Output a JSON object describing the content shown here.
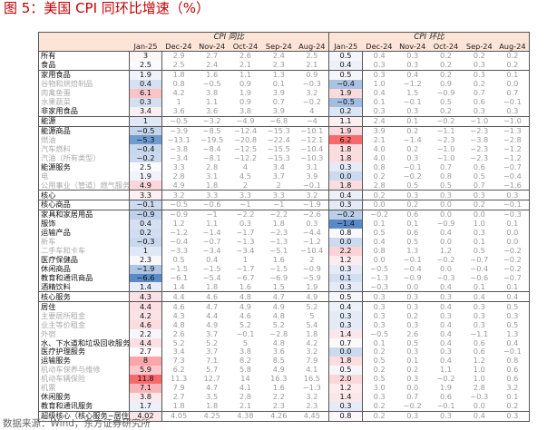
{
  "title": "图 5：美国 CPI 同环比增速（%）",
  "source": "数据来源：Wind，东方证券研究所",
  "header": {
    "yoy_label": "CPI 同比",
    "mom_label": "CPI 环比",
    "months": [
      "Jan-25",
      "Dec-24",
      "Nov-24",
      "Oct-24",
      "Sep-24",
      "Aug-24"
    ]
  },
  "colors": {
    "header_bg": "#fce4d6",
    "high": "#f8696b",
    "mid": "#fcfcff",
    "low": "#5a8ac6"
  },
  "rows": [
    {
      "label": "所有",
      "gray": false,
      "sep": false,
      "yoy": [
        "3",
        "2.9",
        "2.7",
        "2.6",
        "2.4",
        "2.5"
      ],
      "mom": [
        "0.5",
        "0.4",
        "0.3",
        "0.2",
        "0.2",
        "0.2"
      ]
    },
    {
      "label": "食品",
      "gray": false,
      "sep": true,
      "yoy": [
        "2.5",
        "2.5",
        "2.4",
        "2.1",
        "2.3",
        "2.1"
      ],
      "mom": [
        "0.4",
        "0.3",
        "0.3",
        "0.2",
        "0.3",
        "0.2"
      ]
    },
    {
      "label": "家用食品",
      "gray": false,
      "sep": false,
      "yoy": [
        "1.9",
        "1.8",
        "1.6",
        "1.1",
        "1.3",
        "0.9"
      ],
      "mom": [
        "0.5",
        "0.3",
        "0.4",
        "0.2",
        "0.3",
        "0.1"
      ]
    },
    {
      "label": "谷物和烘焙制品",
      "gray": true,
      "sep": false,
      "yoy": [
        "0.4",
        "0.8",
        "−0.5",
        "0.9",
        "0.1",
        "−0.3"
      ],
      "mom": [
        "−0.4",
        "1.0",
        "−1.2",
        "0.9",
        "0.2",
        "0.0"
      ]
    },
    {
      "label": "肉禽鱼蛋",
      "gray": true,
      "sep": false,
      "yoy": [
        "6.1",
        "4.2",
        "3.8",
        "1.9",
        "3.9",
        "3.2"
      ],
      "mom": [
        "1.9",
        "0.4",
        "1.5",
        "−0.9",
        "0.7",
        "0.7"
      ]
    },
    {
      "label": "水果蔬菜",
      "gray": true,
      "sep": false,
      "yoy": [
        "0.3",
        "1",
        "1.1",
        "0.9",
        "0.7",
        "−0.2"
      ],
      "mom": [
        "−0.5",
        "0.1",
        "−0.1",
        "0.5",
        "0.6",
        "−0.1"
      ]
    },
    {
      "label": "非家用食品",
      "gray": false,
      "sep": true,
      "yoy": [
        "3.4",
        "3.6",
        "3.6",
        "3.8",
        "3.9",
        "4"
      ],
      "mom": [
        "0.2",
        "0.3",
        "0.3",
        "0.2",
        "0.3",
        "0.3"
      ]
    },
    {
      "label": "能源",
      "gray": false,
      "sep": true,
      "yoy": [
        "1",
        "−0.5",
        "−3.2",
        "−4.9",
        "−6.8",
        "−4"
      ],
      "mom": [
        "1.1",
        "2.4",
        "0.1",
        "−0.2",
        "−1.0",
        "−1.0"
      ]
    },
    {
      "label": "能源商品",
      "gray": false,
      "sep": false,
      "yoy": [
        "−0.5",
        "−3.9",
        "−8.5",
        "−12.4",
        "−15.3",
        "−10.1"
      ],
      "mom": [
        "1.9",
        "3.9",
        "0.2",
        "−1.1",
        "−2.3",
        "−1.3"
      ]
    },
    {
      "label": "燃油",
      "gray": true,
      "sep": false,
      "yoy": [
        "−5.3",
        "−13.1",
        "−19.5",
        "−20.8",
        "−22.4",
        "−12.1"
      ],
      "mom": [
        "6.2",
        "2.1",
        "−1.4",
        "−2.3",
        "−3.8",
        "−2.8"
      ]
    },
    {
      "label": "汽车燃料",
      "gray": true,
      "sep": false,
      "yoy": [
        "−0.4",
        "−3.8",
        "−8.4",
        "−12.5",
        "−15.5",
        "−10.4"
      ],
      "mom": [
        "1.8",
        "4.0",
        "0.2",
        "−1.0",
        "−2.3",
        "−1.2"
      ]
    },
    {
      "label": "汽油（所有类型）",
      "gray": true,
      "sep": false,
      "yoy": [
        "−0.2",
        "−3.4",
        "−8.1",
        "−12.2",
        "−15.3",
        "−10.3"
      ],
      "mom": [
        "1.8",
        "4.0",
        "0.3",
        "−1.0",
        "−2.3",
        "−1.2"
      ]
    },
    {
      "label": "能源服务",
      "gray": false,
      "sep": false,
      "yoy": [
        "2.5",
        "3.3",
        "2.8",
        "4",
        "3.4",
        "3.1"
      ],
      "mom": [
        "0.3",
        "0.8",
        "−0.1",
        "0.7",
        "0.6",
        "−0.7"
      ]
    },
    {
      "label": "电",
      "gray": true,
      "sep": false,
      "yoy": [
        "1.9",
        "2.8",
        "3.1",
        "4.5",
        "3.7",
        "3.9"
      ],
      "mom": [
        "0.0",
        "0.2",
        "−0.2",
        "0.8",
        "0.5",
        "−0.4"
      ]
    },
    {
      "label": "公用事业（管道）燃气服务",
      "gray": true,
      "sep": true,
      "yoy": [
        "4.9",
        "4.9",
        "1.8",
        "2",
        "2",
        "−0.1"
      ],
      "mom": [
        "1.8",
        "2.8",
        "0.5",
        "0.5",
        "0.7",
        "−1.6"
      ]
    },
    {
      "label": "核心",
      "gray": false,
      "sep": true,
      "yoy": [
        "3.3",
        "3.2",
        "3.3",
        "3.3",
        "3.3",
        "3.2"
      ],
      "mom": [
        "0.4",
        "0.2",
        "0.3",
        "0.3",
        "0.3",
        "0.3"
      ]
    },
    {
      "label": "核心商品",
      "gray": false,
      "sep": true,
      "yoy": [
        "−0.1",
        "−0.5",
        "−0.6",
        "−1",
        "−1",
        "−1.9"
      ],
      "mom": [
        "0.3",
        "0.0",
        "0.2",
        "0.0",
        "0.2",
        "−0.1"
      ]
    },
    {
      "label": "家具和家居用品",
      "gray": false,
      "sep": false,
      "yoy": [
        "−0.9",
        "−0.9",
        "−1",
        "−2.2",
        "−2.2",
        "−2.6"
      ],
      "mom": [
        "−0.2",
        "−0.2",
        "0.6",
        "0.0",
        "0.0",
        "−0.3"
      ]
    },
    {
      "label": "服饰",
      "gray": false,
      "sep": false,
      "yoy": [
        "0.4",
        "1.2",
        "1.1",
        "0.3",
        "1.8",
        "0.3"
      ],
      "mom": [
        "−1.4",
        "0.1",
        "0.1",
        "−0.9",
        "1.0",
        "0.1"
      ]
    },
    {
      "label": "运输产品",
      "gray": false,
      "sep": false,
      "yoy": [
        "0.2",
        "−1.2",
        "−1.4",
        "−1.7",
        "−2.3",
        "−4.4"
      ],
      "mom": [
        "0.8",
        "0.5",
        "0.6",
        "0.4",
        "0.3",
        "0.0"
      ]
    },
    {
      "label": "新车",
      "gray": true,
      "sep": false,
      "yoy": [
        "−0.3",
        "−0.4",
        "−0.7",
        "−1.3",
        "−1.3",
        "−1.2"
      ],
      "mom": [
        "0.0",
        "0.4",
        "0.5",
        "0.0",
        "0.1",
        "0.0"
      ]
    },
    {
      "label": "二手车和卡车",
      "gray": true,
      "sep": false,
      "yoy": [
        "1",
        "−3.3",
        "−3.4",
        "−3.4",
        "−5.1",
        "−10.4"
      ],
      "mom": [
        "2.2",
        "0.8",
        "1.3",
        "1.2",
        "0.5",
        "−0.2"
      ]
    },
    {
      "label": "医疗保健品",
      "gray": false,
      "sep": false,
      "yoy": [
        "2.3",
        "0.5",
        "0.4",
        "1",
        "1.6",
        "2"
      ],
      "mom": [
        "1.2",
        "0.0",
        "−0.1",
        "−0.2",
        "−0.7",
        "−0.2"
      ]
    },
    {
      "label": "休闲商品",
      "gray": false,
      "sep": false,
      "yoy": [
        "−1.9",
        "−1.5",
        "−1.5",
        "−1.7",
        "−1.5",
        "−0.9"
      ],
      "mom": [
        "0.3",
        "−0.5",
        "−0.4",
        "0.0",
        "−0.4",
        "−0.2"
      ]
    },
    {
      "label": "教育和通讯商品",
      "gray": false,
      "sep": false,
      "yoy": [
        "−6.6",
        "−6.1",
        "−5.4",
        "−6.7",
        "−6.9",
        "−5.9"
      ],
      "mom": [
        "0.1",
        "−1.3",
        "−0.9",
        "−0.3",
        "−0.6",
        "−0.7"
      ]
    },
    {
      "label": "酒精饮料",
      "gray": false,
      "sep": true,
      "yoy": [
        "1.4",
        "1.4",
        "1.8",
        "1.6",
        "1.5",
        "1.9"
      ],
      "mom": [
        "0.3",
        "−0.3",
        "0.0",
        "0.4",
        "0.1",
        "0.1"
      ]
    },
    {
      "label": "核心服务",
      "gray": false,
      "sep": true,
      "yoy": [
        "4.3",
        "4.4",
        "4.6",
        "4.8",
        "4.7",
        "4.9"
      ],
      "mom": [
        "0.5",
        "0.3",
        "0.3",
        "0.3",
        "0.4",
        "0.4"
      ]
    },
    {
      "label": "居住",
      "gray": false,
      "sep": false,
      "yoy": [
        "4.4",
        "4.6",
        "4.7",
        "4.9",
        "4.9",
        "5.2"
      ],
      "mom": [
        "0.4",
        "0.3",
        "0.3",
        "0.4",
        "0.3",
        "0.5"
      ]
    },
    {
      "label": "主要居所租金",
      "gray": true,
      "sep": false,
      "yoy": [
        "4.2",
        "4.3",
        "4.4",
        "4.6",
        "4.8",
        "5"
      ],
      "mom": [
        "0.3",
        "0.3",
        "0.2",
        "0.3",
        "0.3",
        "0.3"
      ]
    },
    {
      "label": "业主等价租金",
      "gray": true,
      "sep": false,
      "yoy": [
        "4.6",
        "4.8",
        "4.9",
        "5.2",
        "5.2",
        "5.4"
      ],
      "mom": [
        "0.3",
        "0.3",
        "0.3",
        "0.4",
        "0.3",
        "0.5"
      ]
    },
    {
      "label": "外宿",
      "gray": true,
      "sep": false,
      "yoy": [
        "2.2",
        "2.6",
        "3.7",
        "−0.1",
        "−2.8",
        "1.8"
      ],
      "mom": [
        "1.4",
        "−0.5",
        "2.6",
        "0.4",
        "−1.1",
        "1.3"
      ]
    },
    {
      "label": "水、下水道和垃圾回收服务",
      "gray": false,
      "sep": false,
      "yoy": [
        "4.4",
        "5.2",
        "5.2",
        "5",
        "4.8",
        "4.2"
      ],
      "mom": [
        "0.7",
        "0.1",
        "0.5",
        "0.4",
        "0.6",
        "0.4"
      ]
    },
    {
      "label": "医疗护理服务",
      "gray": false,
      "sep": false,
      "yoy": [
        "2.7",
        "3.4",
        "3.7",
        "3.8",
        "3.6",
        "3.2"
      ],
      "mom": [
        "0.0",
        "0.2",
        "0.3",
        "0.3",
        "0.6",
        "−0.1"
      ]
    },
    {
      "label": "运输服务",
      "gray": false,
      "sep": false,
      "yoy": [
        "8",
        "7.3",
        "7.1",
        "8.2",
        "8.5",
        "7.9"
      ],
      "mom": [
        "1.8",
        "0.5",
        "0.1",
        "0.4",
        "1.2",
        "0.8"
      ]
    },
    {
      "label": "机动车保养与维修",
      "gray": true,
      "sep": false,
      "yoy": [
        "5.9",
        "6.2",
        "5.7",
        "5.8",
        "4.9",
        "4.1"
      ],
      "mom": [
        "0.5",
        "0.2",
        "0.2",
        "1.1",
        "1.0",
        "0.6"
      ]
    },
    {
      "label": "机动车辆保险",
      "gray": true,
      "sep": false,
      "yoy": [
        "11.8",
        "11.3",
        "12.7",
        "14",
        "16.3",
        "16.5"
      ],
      "mom": [
        "2.0",
        "0.5",
        "0.3",
        "−0.2",
        "1.0",
        "0.6"
      ]
    },
    {
      "label": "机票",
      "gray": true,
      "sep": false,
      "yoy": [
        "7.1",
        "7.9",
        "4.7",
        "4.1",
        "1.6",
        "−1.3"
      ],
      "mom": [
        "1.2",
        "3.0",
        "0.0",
        "1.9",
        "2.8",
        "3.2"
      ]
    },
    {
      "label": "休闲服务",
      "gray": false,
      "sep": false,
      "yoy": [
        "3.8",
        "2.7",
        "3.5",
        "2.8",
        "2.2",
        "3.2"
      ],
      "mom": [
        "1.4",
        "0.3",
        "0.7",
        "0.6",
        "−0.3",
        "0.1"
      ]
    },
    {
      "label": "教育和通讯服务",
      "gray": false,
      "sep": true,
      "yoy": [
        "1.7",
        "1.8",
        "1.8",
        "2.1",
        "2.3",
        "2.3"
      ],
      "mom": [
        "0.3",
        "0.2",
        "−0.2",
        "−0.1",
        "0.0",
        "0.2"
      ]
    },
    {
      "label": "超级核心（核心服务−居住）",
      "gray": false,
      "sep": false,
      "yoy": [
        "4.02",
        "4.05",
        "4.25",
        "4.38",
        "4.26",
        "4.45"
      ],
      "mom": [
        "0.8",
        "0.2",
        "0.3",
        "0.3",
        "0.4",
        "0.3"
      ]
    }
  ]
}
